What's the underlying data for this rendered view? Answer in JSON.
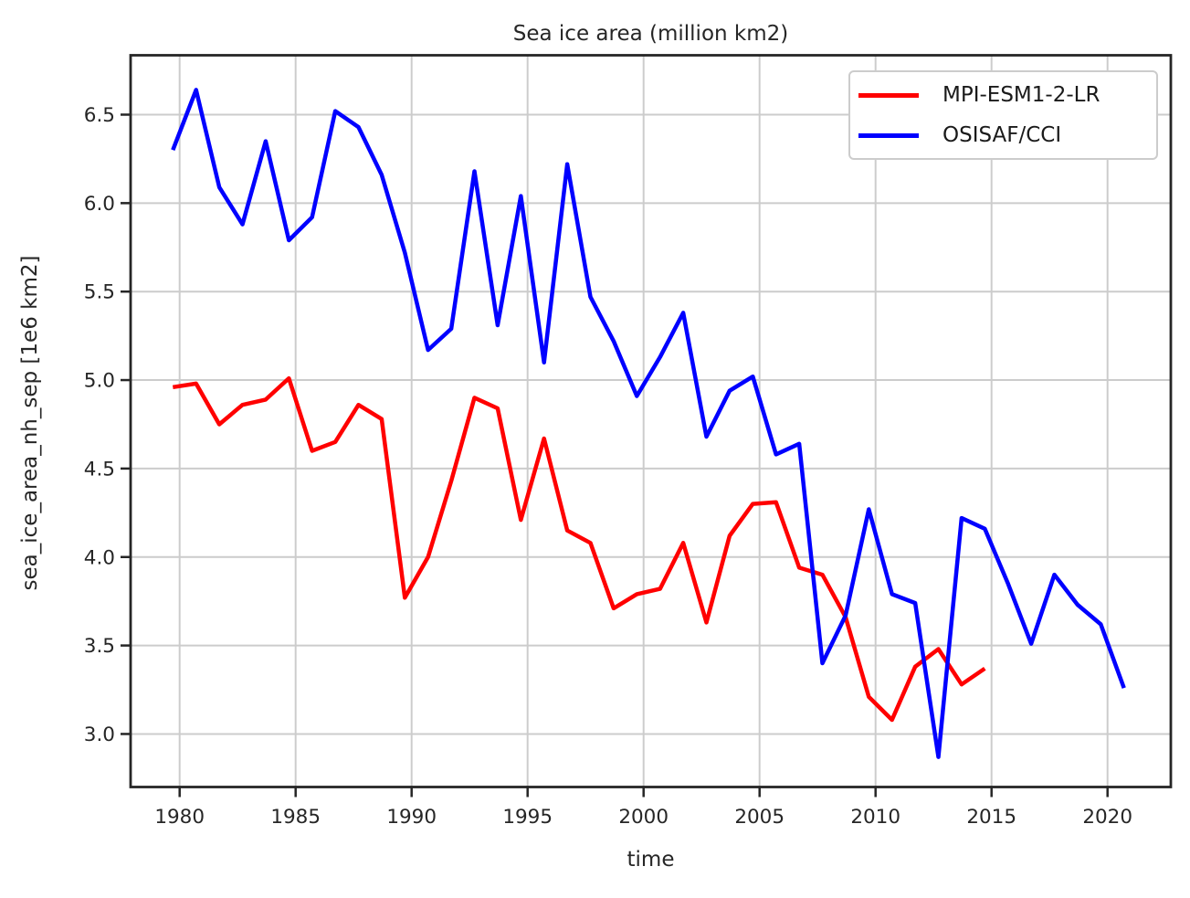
{
  "title": "Sea ice area (million km2)",
  "x_axis": {
    "label": "time",
    "ticks": [
      1980,
      1985,
      1990,
      1995,
      2000,
      2005,
      2010,
      2015,
      2020
    ],
    "tick_labels": [
      "1980",
      "1985",
      "1990",
      "1995",
      "2000",
      "2005",
      "2010",
      "2015",
      "2020"
    ]
  },
  "y_axis": {
    "label": "sea_ice_area_nh_sep [1e6 km2]",
    "ticks": [
      3.0,
      3.5,
      4.0,
      4.5,
      5.0,
      5.5,
      6.0,
      6.5
    ],
    "tick_labels": [
      "3.0",
      "3.5",
      "4.0",
      "4.5",
      "5.0",
      "5.5",
      "6.0",
      "6.5"
    ]
  },
  "legend": {
    "entries": [
      {
        "label": "MPI-ESM1-2-LR",
        "color": "#ff0000"
      },
      {
        "label": "OSISAF/CCI",
        "color": "#0000ff"
      }
    ]
  },
  "chart_data": {
    "type": "line",
    "title": "Sea ice area (million km2)",
    "xlabel": "time",
    "ylabel": "sea_ice_area_nh_sep [1e6 km2]",
    "xlim": [
      1977.9,
      2022.8
    ],
    "ylim": [
      2.69,
      6.83
    ],
    "grid": true,
    "legend_position": "upper right",
    "note": "annual September values, plotted at year + 0.71",
    "series": [
      {
        "name": "MPI-ESM1-2-LR",
        "color": "#ff0000",
        "years": [
          1979,
          1980,
          1981,
          1982,
          1983,
          1984,
          1985,
          1986,
          1987,
          1988,
          1989,
          1990,
          1991,
          1992,
          1993,
          1994,
          1995,
          1996,
          1997,
          1998,
          1999,
          2000,
          2001,
          2002,
          2003,
          2004,
          2005,
          2006,
          2007,
          2008,
          2009,
          2010,
          2011,
          2012,
          2013,
          2014
        ],
        "values": [
          4.96,
          4.98,
          4.75,
          4.86,
          4.89,
          5.01,
          4.6,
          4.65,
          4.86,
          4.78,
          3.77,
          4.0,
          4.43,
          4.9,
          4.84,
          4.21,
          4.67,
          4.15,
          4.08,
          3.71,
          3.79,
          3.82,
          4.08,
          3.63,
          4.12,
          4.3,
          4.31,
          3.94,
          3.9,
          3.66,
          3.21,
          3.08,
          3.38,
          3.48,
          3.28,
          3.37
        ]
      },
      {
        "name": "OSISAF/CCI",
        "color": "#0000ff",
        "years": [
          1979,
          1980,
          1981,
          1982,
          1983,
          1984,
          1985,
          1986,
          1987,
          1988,
          1989,
          1990,
          1991,
          1992,
          1993,
          1994,
          1995,
          1996,
          1997,
          1998,
          1999,
          2000,
          2001,
          2002,
          2003,
          2004,
          2005,
          2006,
          2007,
          2008,
          2009,
          2010,
          2011,
          2012,
          2013,
          2014,
          2015,
          2016,
          2017,
          2018,
          2019,
          2020
        ],
        "values": [
          6.3,
          6.64,
          6.09,
          5.88,
          6.35,
          5.79,
          5.92,
          6.52,
          6.43,
          6.16,
          5.72,
          5.17,
          5.29,
          6.18,
          5.31,
          6.04,
          5.1,
          6.22,
          5.47,
          5.22,
          4.91,
          5.13,
          5.38,
          4.68,
          4.94,
          5.02,
          4.58,
          4.64,
          3.4,
          3.67,
          4.27,
          3.79,
          3.74,
          2.87,
          4.22,
          4.16,
          3.85,
          3.51,
          3.9,
          3.73,
          3.62,
          3.26
        ]
      }
    ]
  }
}
